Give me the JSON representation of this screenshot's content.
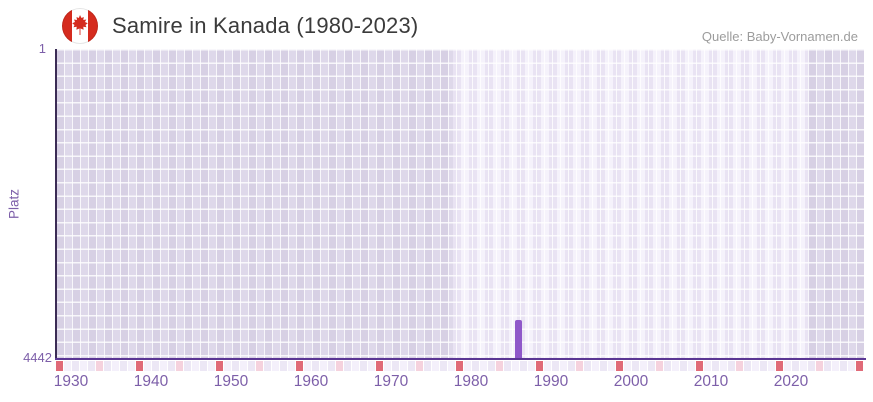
{
  "header": {
    "title": "Samire in Kanada (1980-2023)",
    "source": "Quelle: Baby-Vornamen.de"
  },
  "chart_data": {
    "type": "bar",
    "title": "Samire in Kanada (1980-2023)",
    "source": "Quelle: Baby-Vornamen.de",
    "xlabel": "",
    "ylabel": "Platz",
    "y_axis": {
      "top_label": "1",
      "bottom_label": "4442",
      "min": 1,
      "max": 4442,
      "inverted": true
    },
    "x_ticks": [
      1930,
      1940,
      1950,
      1960,
      1970,
      1980,
      1990,
      2000,
      2010,
      2020
    ],
    "x_range": [
      1929,
      2029
    ],
    "highlight_band": {
      "from_year": 1979,
      "to_year": 2023
    },
    "series": [
      {
        "name": "Platz",
        "points": [
          {
            "year": 1986,
            "platz": 3900
          }
        ]
      }
    ],
    "legend": null,
    "grid": true
  },
  "axis_strip": {
    "cell_count": 101,
    "decade_interval": 10,
    "half_decade_offset": 5
  },
  "colors": {
    "bar": "#8f58c9",
    "axis_y_line": "#3b2c55",
    "axis_x_line": "#5b3794",
    "tick_text": "#7d5fa9",
    "title_text": "#3b3b3b",
    "source_text": "#9c9c9c",
    "band_dim_a": "#d7d0e4",
    "band_dim_b": "#ded8ea",
    "band_lit_a": "#e9e3f3",
    "band_lit_b": "#f5f2fb",
    "strip_decade": "#e06a78",
    "strip_half_decade": "#f5d2dd",
    "strip_even": "#ece7f5",
    "strip_odd": "#f4f0fb",
    "flag_red": "#d52b1e"
  }
}
